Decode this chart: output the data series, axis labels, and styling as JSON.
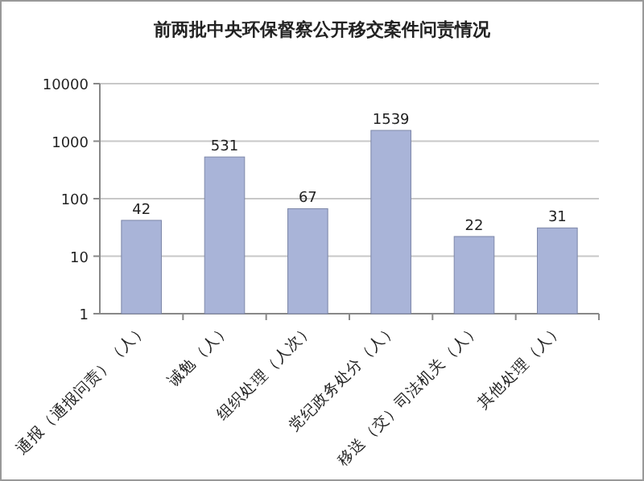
{
  "chart_data": {
    "type": "bar",
    "title": "前两批中央环保督察公开移交案件问责情况",
    "categories": [
      "通报（通报问责）（人）",
      "诫勉（人）",
      "组织处理（人次）",
      "党纪政务处分（人）",
      "移送（交）司法机关（人）",
      "其他处理（人）"
    ],
    "values": [
      42,
      531,
      67,
      1539,
      22,
      31
    ],
    "color": "#a9b4d8",
    "log": true,
    "ylim": [
      1,
      10000
    ],
    "yticks": [
      1,
      10,
      100,
      1000,
      10000
    ],
    "grid": "y",
    "data_labels": true
  }
}
